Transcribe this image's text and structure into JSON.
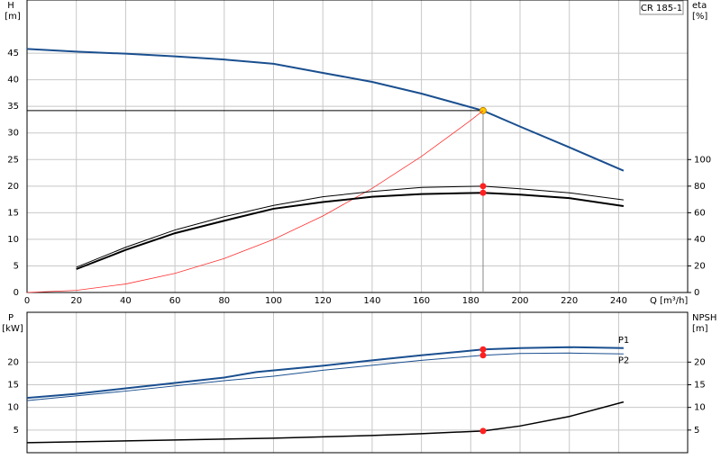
{
  "chart_data": [
    {
      "type": "line",
      "model": "CR 185-1",
      "y_label": "H",
      "y_unit": "[m]",
      "y2_label": "eta",
      "y2_unit": "[%]",
      "x_label": "Q [m³/h]",
      "xlim": [
        0,
        268
      ],
      "xticks": [
        0,
        20,
        40,
        60,
        80,
        100,
        120,
        140,
        160,
        180,
        200,
        220,
        240
      ],
      "ylim": [
        0,
        55
      ],
      "yticks": [
        0,
        5,
        10,
        15,
        20,
        25,
        30,
        35,
        40,
        45
      ],
      "y2lim": [
        0,
        220
      ],
      "y2ticks": [
        0,
        20,
        40,
        60,
        80,
        100
      ],
      "grid": true,
      "grid_color": "#c8c8c8",
      "duty_point": {
        "x": 185,
        "y": 34.2
      },
      "series": [
        {
          "color": "#1a4f8f",
          "line_width": 2,
          "marker_color": "#ffcc00",
          "x": [
            0,
            20,
            40,
            60,
            80,
            100,
            120,
            140,
            160,
            185,
            200,
            220,
            242
          ],
          "values": [
            45.8,
            45.3,
            44.9,
            44.4,
            43.8,
            43.0,
            41.3,
            39.6,
            37.4,
            34.2,
            31.2,
            27.3,
            22.9
          ]
        },
        {
          "color": "#ff3030",
          "line_width": 0.8,
          "x": [
            0,
            20,
            40,
            60,
            80,
            100,
            120,
            140,
            160,
            180,
            185
          ],
          "values": [
            0,
            0.4,
            1.6,
            3.6,
            6.39,
            9.99,
            14.39,
            19.58,
            25.58,
            32.37,
            34.2
          ]
        },
        {
          "color": "#000000",
          "line_width": 1,
          "axis": "y2",
          "marker_color": "#ff2020",
          "x": [
            20,
            40,
            60,
            80,
            100,
            120,
            140,
            160,
            185,
            200,
            220,
            242
          ],
          "values": [
            19,
            34,
            47,
            57,
            65.5,
            72,
            76,
            79,
            80,
            78,
            75,
            69.6
          ]
        },
        {
          "color": "#000000",
          "line_width": 2,
          "axis": "y2",
          "marker_color": "#ff2020",
          "x": [
            20,
            40,
            60,
            80,
            100,
            120,
            140,
            160,
            185,
            200,
            220,
            242
          ],
          "values": [
            17.6,
            32,
            44.6,
            54,
            63,
            68,
            72,
            74,
            75,
            73.6,
            71,
            65
          ]
        }
      ]
    },
    {
      "type": "line",
      "y_label": "P",
      "y_unit": "[kW]",
      "y2_label": "NPSH",
      "y2_unit": "[m]",
      "xlim": [
        0,
        268
      ],
      "ylim": [
        0,
        31
      ],
      "yticks": [
        5,
        10,
        15,
        20
      ],
      "y2lim": [
        0,
        31
      ],
      "y2ticks": [
        5,
        10,
        15,
        20
      ],
      "grid": true,
      "grid_color": "#c8c8c8",
      "series": [
        {
          "name": "P1",
          "color": "#1a4f8f",
          "line_width": 2,
          "marker_color": "#ff2020",
          "x": [
            0,
            20,
            40,
            60,
            80,
            93,
            120,
            140,
            160,
            185,
            200,
            220,
            242
          ],
          "values": [
            12.1,
            13.0,
            14.2,
            15.4,
            16.6,
            17.8,
            19.2,
            20.4,
            21.5,
            22.8,
            23.1,
            23.3,
            23.1
          ]
        },
        {
          "name": "P2",
          "color": "#1a4f8f",
          "line_width": 1,
          "marker_color": "#ff2020",
          "x": [
            0,
            40,
            80,
            100,
            120,
            140,
            160,
            185,
            200,
            220,
            242
          ],
          "values": [
            11.5,
            13.6,
            15.9,
            16.9,
            18.2,
            19.3,
            20.4,
            21.5,
            21.9,
            22.0,
            21.8
          ]
        },
        {
          "color": "#000000",
          "line_width": 1.5,
          "axis": "y2",
          "marker_color": "#ff2020",
          "x": [
            0,
            40,
            80,
            100,
            120,
            140,
            160,
            185,
            200,
            220,
            242
          ],
          "values": [
            2.2,
            2.6,
            3.0,
            3.2,
            3.5,
            3.8,
            4.2,
            4.8,
            5.9,
            8.0,
            11.2
          ]
        }
      ]
    }
  ]
}
